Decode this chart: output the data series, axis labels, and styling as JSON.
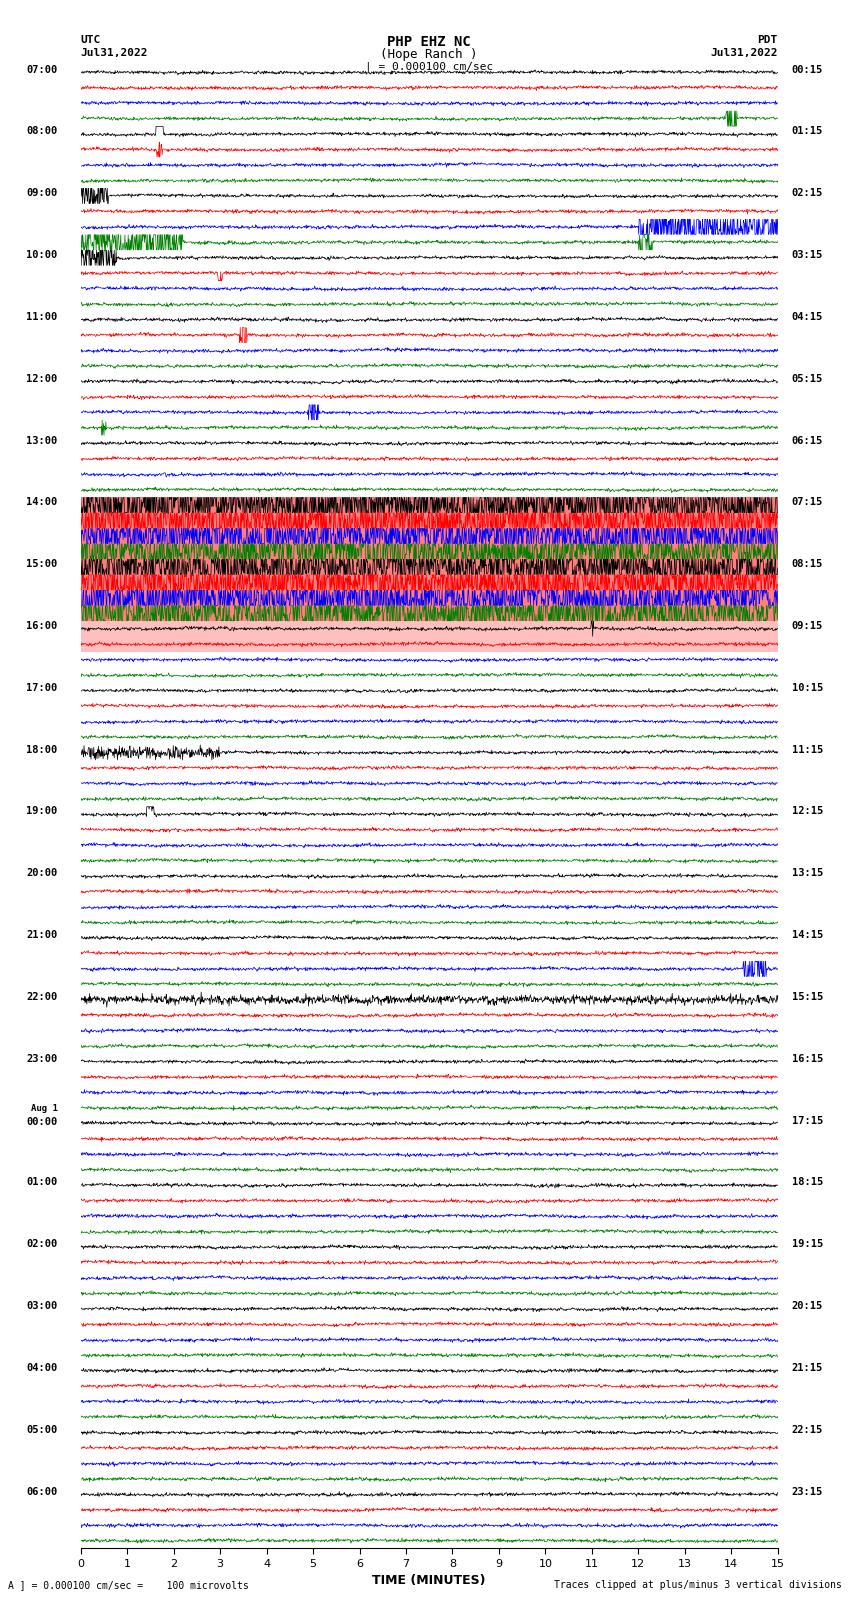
{
  "title_line1": "PHP EHZ NC",
  "title_line2": "(Hope Ranch )",
  "title_line3": "| = 0.000100 cm/sec",
  "left_header_line1": "UTC",
  "left_header_line2": "Jul31,2022",
  "right_header_line1": "PDT",
  "right_header_line2": "Jul31,2022",
  "xlabel": "TIME (MINUTES)",
  "footer_left": "A ] = 0.000100 cm/sec =    100 microvolts",
  "footer_right": "Traces clipped at plus/minus 3 vertical divisions",
  "x_min": 0,
  "x_max": 15,
  "x_ticks": [
    0,
    1,
    2,
    3,
    4,
    5,
    6,
    7,
    8,
    9,
    10,
    11,
    12,
    13,
    14,
    15
  ],
  "bg_color": "#ffffff",
  "trace_colors": [
    "black",
    "red",
    "blue",
    "green"
  ],
  "noise_base": 0.12,
  "noise_seed": 42,
  "utc_times": [
    "07:00",
    "08:00",
    "09:00",
    "10:00",
    "11:00",
    "12:00",
    "13:00",
    "14:00",
    "15:00",
    "16:00",
    "17:00",
    "18:00",
    "19:00",
    "20:00",
    "21:00",
    "22:00",
    "23:00",
    "Aug 1\n00:00",
    "01:00",
    "02:00",
    "03:00",
    "04:00",
    "05:00",
    "06:00"
  ],
  "pdt_times": [
    "00:15",
    "01:15",
    "02:15",
    "03:15",
    "04:15",
    "05:15",
    "06:15",
    "07:15",
    "08:15",
    "09:15",
    "10:15",
    "11:15",
    "12:15",
    "13:15",
    "14:15",
    "15:15",
    "16:15",
    "17:15",
    "18:15",
    "19:15",
    "20:15",
    "21:15",
    "22:15",
    "23:15"
  ],
  "num_groups": 24,
  "highlight_groups": [
    7,
    8
  ],
  "highlight_color": "#ff0000",
  "highlight_alpha": 0.85
}
